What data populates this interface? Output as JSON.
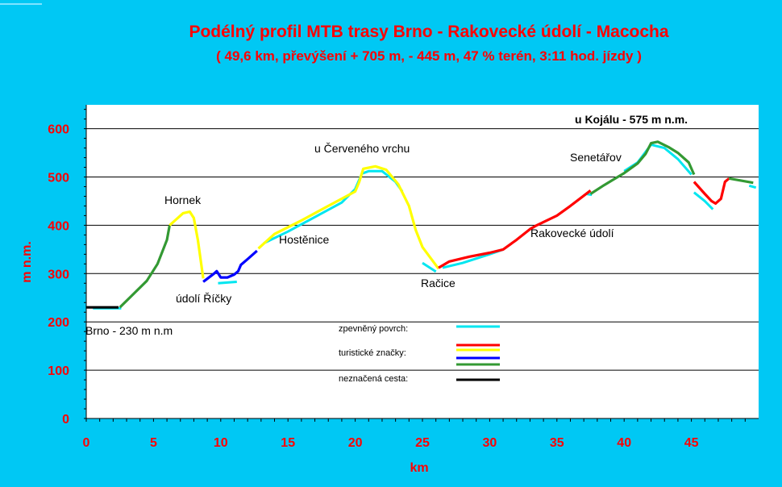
{
  "chart_data": {
    "type": "line",
    "title": "Podélný profil MTB trasy Brno - Rakovecké údolí - Macocha",
    "subtitle": "( 49,6 km, převýšení + 705 m, - 445 m, 47 % terén, 3:11 hod. jízdy )",
    "xlabel": "km",
    "ylabel": "m n.m.",
    "xlim": [
      0,
      50
    ],
    "ylim": [
      0,
      650
    ],
    "x_ticks": [
      "0",
      "5",
      "10",
      "15",
      "20",
      "25",
      "30",
      "35",
      "40",
      "45"
    ],
    "y_ticks": [
      "0",
      "100",
      "200",
      "300",
      "400",
      "500",
      "600"
    ],
    "grid": "horizontal",
    "colors": {
      "background": "#00c8f4",
      "plot_area": "#ffffff",
      "cyan": "#00e6f0",
      "red": "#ff0000",
      "yellow": "#ffff00",
      "blue": "#0000ff",
      "green": "#339933",
      "black": "#000000"
    },
    "series": [
      {
        "color": "cyan",
        "values": [
          [
            0.5,
            228
          ],
          [
            2.6,
            228
          ]
        ]
      },
      {
        "color": "cyan",
        "values": [
          [
            9.8,
            280
          ],
          [
            11.2,
            283
          ]
        ]
      },
      {
        "color": "cyan",
        "values": [
          [
            13.2,
            363
          ],
          [
            15,
            387
          ],
          [
            17,
            417
          ],
          [
            19,
            447
          ],
          [
            20,
            475
          ],
          [
            20.5,
            507
          ],
          [
            21,
            512
          ],
          [
            22,
            512
          ],
          [
            23,
            490
          ],
          [
            23.5,
            470
          ]
        ]
      },
      {
        "color": "cyan",
        "values": [
          [
            25,
            322
          ],
          [
            26,
            304
          ]
        ]
      },
      {
        "color": "cyan",
        "values": [
          [
            26.5,
            312
          ],
          [
            28,
            322
          ],
          [
            30,
            340
          ],
          [
            31,
            350
          ]
        ]
      },
      {
        "color": "cyan",
        "values": [
          [
            37.2,
            465
          ],
          [
            37.6,
            463
          ]
        ]
      },
      {
        "color": "cyan",
        "values": [
          [
            40,
            512
          ],
          [
            41,
            530
          ],
          [
            42,
            567
          ],
          [
            43,
            560
          ],
          [
            44,
            537
          ],
          [
            45,
            505
          ]
        ]
      },
      {
        "color": "cyan",
        "values": [
          [
            45.2,
            468
          ],
          [
            46,
            450
          ],
          [
            46.6,
            433
          ]
        ]
      },
      {
        "color": "cyan",
        "values": [
          [
            49.3,
            482
          ],
          [
            49.8,
            478
          ]
        ]
      },
      {
        "color": "black",
        "values": [
          [
            0,
            230
          ],
          [
            2.4,
            230
          ]
        ]
      },
      {
        "color": "green",
        "values": [
          [
            2.5,
            230
          ],
          [
            3.3,
            252
          ],
          [
            4.5,
            285
          ],
          [
            5.3,
            320
          ],
          [
            6,
            370
          ],
          [
            6.2,
            400
          ]
        ]
      },
      {
        "color": "yellow",
        "values": [
          [
            6.2,
            400
          ],
          [
            7.2,
            425
          ],
          [
            7.7,
            428
          ],
          [
            8,
            415
          ],
          [
            8.3,
            370
          ],
          [
            8.7,
            290
          ]
        ]
      },
      {
        "color": "blue",
        "values": [
          [
            8.7,
            283
          ],
          [
            9.5,
            300
          ],
          [
            9.7,
            305
          ],
          [
            10,
            292
          ],
          [
            10.5,
            292
          ],
          [
            11,
            298
          ],
          [
            11.3,
            305
          ],
          [
            11.5,
            318
          ],
          [
            12,
            330
          ],
          [
            12.7,
            347
          ]
        ]
      },
      {
        "color": "yellow",
        "values": [
          [
            12.8,
            352
          ],
          [
            14,
            382
          ],
          [
            16,
            410
          ],
          [
            18,
            440
          ],
          [
            20,
            470
          ],
          [
            20.3,
            490
          ],
          [
            20.6,
            517
          ],
          [
            21.5,
            522
          ],
          [
            22.3,
            515
          ],
          [
            23.2,
            485
          ],
          [
            24,
            440
          ],
          [
            24.5,
            390
          ],
          [
            25,
            355
          ],
          [
            26.2,
            310
          ]
        ]
      },
      {
        "color": "red",
        "values": [
          [
            26.2,
            312
          ],
          [
            27,
            325
          ],
          [
            28.5,
            335
          ],
          [
            30,
            343
          ],
          [
            31,
            350
          ],
          [
            32,
            370
          ],
          [
            33,
            392
          ],
          [
            33.5,
            400
          ],
          [
            35,
            420
          ],
          [
            36,
            440
          ],
          [
            37.5,
            472
          ]
        ]
      },
      {
        "color": "green",
        "values": [
          [
            37.5,
            465
          ],
          [
            38.5,
            483
          ],
          [
            40,
            508
          ],
          [
            41,
            528
          ],
          [
            41.6,
            548
          ],
          [
            42,
            570
          ],
          [
            42.5,
            573
          ],
          [
            43.3,
            562
          ],
          [
            44,
            550
          ],
          [
            44.8,
            530
          ],
          [
            45.2,
            505
          ]
        ]
      },
      {
        "color": "red",
        "values": [
          [
            45.2,
            490
          ],
          [
            46,
            465
          ],
          [
            46.5,
            450
          ],
          [
            46.8,
            445
          ],
          [
            47.2,
            455
          ],
          [
            47.5,
            490
          ],
          [
            47.8,
            497
          ]
        ]
      },
      {
        "color": "green",
        "values": [
          [
            47.8,
            497
          ],
          [
            49.6,
            488
          ]
        ]
      }
    ],
    "annotations": [
      {
        "text": "u Kojálu - 575 m n.m."
      },
      {
        "text": "u Červeného vrchu"
      },
      {
        "text": "Senetářov"
      },
      {
        "text": "Hornek"
      },
      {
        "text": "Hostěnice"
      },
      {
        "text": "Rakovecké údolí"
      },
      {
        "text": "Račice"
      },
      {
        "text": "údolí Říčky"
      },
      {
        "text": "Brno - 230 m n.m"
      }
    ],
    "legend": {
      "placement": "center-bottom",
      "entries": [
        {
          "label": "zpevněný povrch:",
          "colors": [
            "cyan",
            "red"
          ]
        },
        {
          "label": "turistické značky:",
          "colors": [
            "yellow",
            "blue",
            "green"
          ]
        },
        {
          "label": "neznačená cesta:",
          "colors": [
            "black"
          ]
        }
      ]
    }
  }
}
